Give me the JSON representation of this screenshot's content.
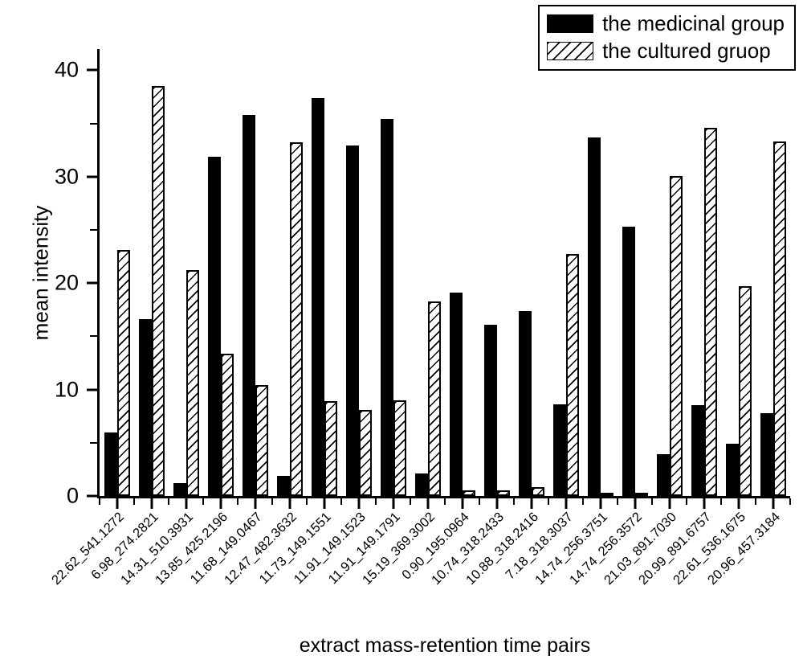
{
  "colors": {
    "foreground": "#000000",
    "background": "#ffffff"
  },
  "legend": {
    "items": [
      {
        "label": "the medicinal group",
        "swatch": "solid-black"
      },
      {
        "label": "the cultured gruop",
        "swatch": "black-diagonal-hatch"
      }
    ]
  },
  "chart_data": {
    "type": "bar",
    "title": "",
    "xlabel": "extract mass-retention time pairs",
    "ylabel": "mean intensity",
    "ylim": [
      0,
      42
    ],
    "yticks_major": [
      0,
      10,
      20,
      30,
      40
    ],
    "yticks_minor": [
      5,
      15,
      25,
      35
    ],
    "grid": "off",
    "legend_position": "top-right",
    "categories": [
      "22.62_541.1272",
      "6.98_274.2821",
      "14.31_510.3931",
      "13.85_425.2196",
      "11.68_149.0467",
      "12.47_482.3632",
      "11.73_149.1551",
      "11.91_149.1523",
      "11.91_149.1791",
      "15.19_369.3002",
      "0.90_195.0964",
      "10.74_318.2433",
      "10.88_318.2416",
      "7.18_318.3037",
      "14.74_256.3751",
      "14.74_256.3572",
      "21.03_891.7030",
      "20.99_891.6757",
      "22.61_536.1675",
      "20.96_457.3184"
    ],
    "series": [
      {
        "name": "the medicinal group",
        "style": "solid",
        "values": [
          6.0,
          16.6,
          1.2,
          31.9,
          35.8,
          1.9,
          37.4,
          32.9,
          35.4,
          2.1,
          19.1,
          16.1,
          17.4,
          8.6,
          33.7,
          25.3,
          3.9,
          8.5,
          4.9,
          7.8
        ]
      },
      {
        "name": "the cultured gruop",
        "style": "hatched",
        "values": [
          23.1,
          38.5,
          21.2,
          13.4,
          10.4,
          33.2,
          8.9,
          8.1,
          9.0,
          18.3,
          0.5,
          0.5,
          0.8,
          22.7,
          0.2,
          0.2,
          30.1,
          34.6,
          19.7,
          33.3
        ]
      }
    ]
  }
}
